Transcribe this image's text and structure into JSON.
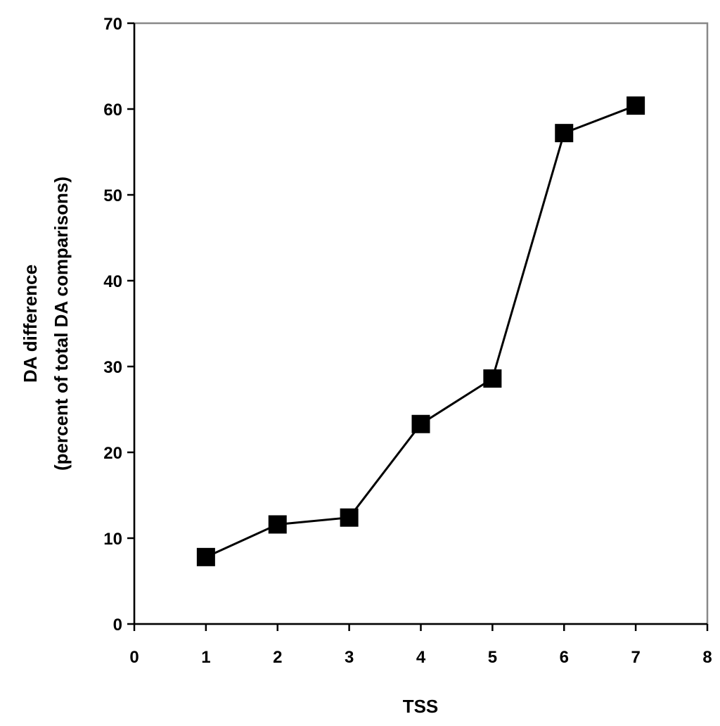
{
  "chart_data": {
    "type": "line",
    "title": "",
    "xlabel": "TSS",
    "ylabel_lines": [
      "DA difference",
      "(percent of total DA comparisons)"
    ],
    "xlim": [
      0,
      8
    ],
    "ylim": [
      0,
      70
    ],
    "x_ticks": [
      0,
      1,
      2,
      3,
      4,
      5,
      6,
      7,
      8
    ],
    "y_ticks": [
      0,
      10,
      20,
      30,
      40,
      50,
      60,
      70
    ],
    "grid": false,
    "legend": "none",
    "marker": "square",
    "series": [
      {
        "x": [
          1,
          2,
          3,
          4,
          5,
          6,
          7
        ],
        "y": [
          7.8,
          11.6,
          12.4,
          23.3,
          28.6,
          57.2,
          60.4
        ]
      }
    ],
    "colors": {
      "line": "#000000",
      "marker": "#000000",
      "frame": "#888888",
      "axis": "#000000"
    }
  }
}
